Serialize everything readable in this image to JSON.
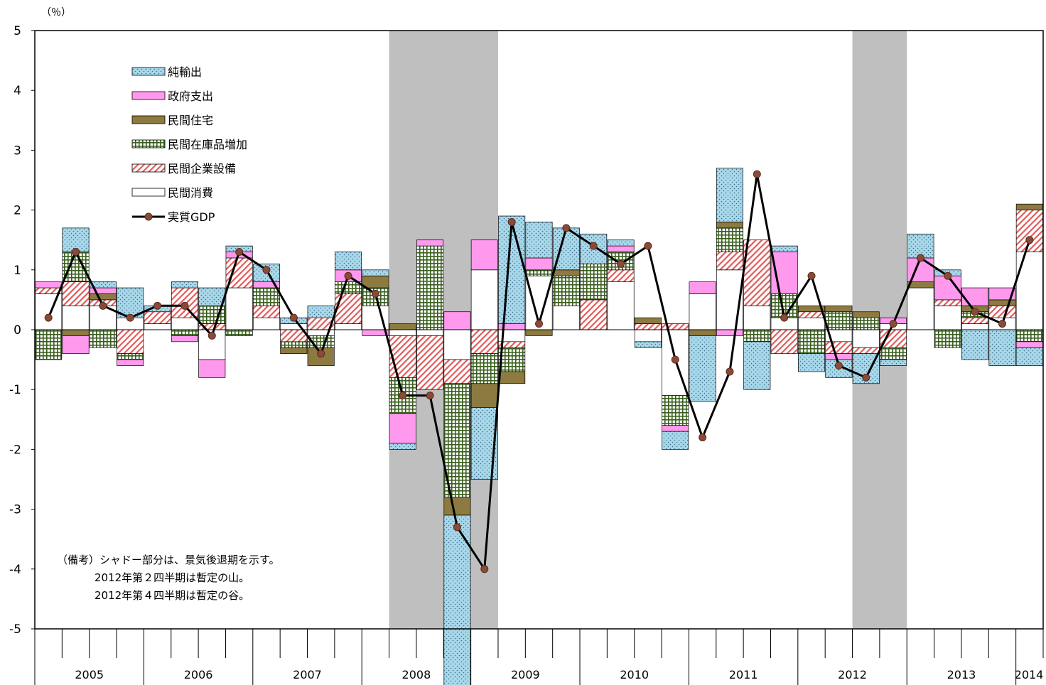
{
  "chart_data": {
    "type": "bar",
    "subtype": "stacked-bar-with-line",
    "unit_label": "（％）",
    "ylim": [
      -5,
      5
    ],
    "yticks": [
      5,
      4,
      3,
      2,
      1,
      0,
      -1,
      -2,
      -3,
      -4,
      -5
    ],
    "grid": false,
    "legend_position": "top-left",
    "years": [
      "2005",
      "2006",
      "2007",
      "2008",
      "2009",
      "2010",
      "2011",
      "2012",
      "2013",
      "2014"
    ],
    "recession_shading": [
      {
        "from_quarter": 13,
        "to_quarter": 16
      },
      {
        "from_quarter": 30,
        "to_quarter": 31
      }
    ],
    "series": [
      {
        "name": "民間消費",
        "pattern": "plain",
        "color": "#ffffff",
        "values": [
          0.6,
          0.4,
          0.4,
          0.2,
          0.1,
          0.2,
          -0.5,
          0.7,
          0.2,
          0.1,
          -0.1,
          0.1,
          0.4,
          -0.1,
          -0.1,
          -0.5,
          1.0,
          -0.2,
          0.9,
          0.4,
          0.0,
          0.8,
          -0.2,
          -1.1,
          0.6,
          1.0,
          0.4,
          0.2,
          0.2,
          -0.2,
          -0.3,
          0.1,
          0.7,
          0.4,
          0.1,
          0.2,
          1.3
        ]
      },
      {
        "name": "民間企業設備",
        "pattern": "diag",
        "color": "#e05c5c",
        "values": [
          0.1,
          0.4,
          0.1,
          -0.4,
          0.2,
          0.5,
          0.1,
          0.5,
          0.2,
          -0.2,
          0.2,
          0.5,
          0.0,
          -0.7,
          -0.9,
          -0.4,
          -0.4,
          -0.1,
          0.0,
          0.0,
          0.5,
          0.2,
          0.1,
          0.1,
          0.0,
          0.3,
          1.1,
          -0.4,
          0.1,
          -0.2,
          -0.1,
          -0.3,
          0.0,
          0.1,
          0.1,
          0.2,
          0.7
        ]
      },
      {
        "name": "民間在庫品増加",
        "pattern": "grid",
        "color": "#3a5f1e",
        "values": [
          -0.5,
          0.5,
          -0.3,
          -0.1,
          0.0,
          -0.1,
          0.3,
          -0.1,
          0.3,
          -0.1,
          -0.2,
          0.2,
          0.3,
          -0.6,
          1.4,
          -1.9,
          -0.5,
          -0.4,
          0.1,
          0.5,
          0.6,
          0.3,
          0.0,
          -0.5,
          0.0,
          0.4,
          -0.2,
          0.4,
          -0.4,
          0.3,
          0.2,
          -0.2,
          0.0,
          -0.3,
          0.1,
          0.0,
          -0.2
        ]
      },
      {
        "name": "民間住宅",
        "pattern": "solid",
        "color": "#8c7a40",
        "values": [
          0.0,
          -0.1,
          0.1,
          0.0,
          0.0,
          0.0,
          0.0,
          0.0,
          0.0,
          -0.1,
          -0.3,
          0.0,
          0.2,
          0.1,
          0.0,
          -0.3,
          -0.4,
          -0.2,
          -0.1,
          0.1,
          0.0,
          0.0,
          0.1,
          0.0,
          -0.1,
          0.1,
          0.0,
          0.0,
          0.1,
          0.1,
          0.1,
          0.0,
          0.1,
          0.0,
          0.1,
          0.1,
          0.1
        ]
      },
      {
        "name": "政府支出",
        "pattern": "solid",
        "color": "#ff99ee",
        "values": [
          0.1,
          -0.3,
          0.1,
          -0.1,
          0.0,
          -0.1,
          -0.3,
          0.1,
          0.1,
          0.0,
          0.0,
          0.2,
          -0.1,
          -0.5,
          0.1,
          0.3,
          0.5,
          0.1,
          0.2,
          0.0,
          0.0,
          0.1,
          0.0,
          -0.1,
          0.2,
          -0.1,
          0.0,
          0.7,
          0.0,
          -0.1,
          0.0,
          0.1,
          0.4,
          0.4,
          0.3,
          0.2,
          -0.1
        ]
      },
      {
        "name": "純輸出",
        "pattern": "dots",
        "color": "#a8d8ea",
        "values": [
          0.0,
          0.4,
          0.1,
          0.5,
          0.1,
          0.1,
          0.3,
          0.1,
          0.3,
          0.1,
          0.2,
          0.3,
          0.1,
          -0.1,
          0.0,
          -2.9,
          -1.2,
          1.8,
          0.6,
          0.7,
          0.5,
          0.1,
          -0.1,
          -0.3,
          -1.1,
          0.9,
          -0.8,
          0.1,
          -0.3,
          -0.3,
          -0.5,
          -0.1,
          0.4,
          0.1,
          -0.5,
          -0.6,
          -0.3
        ]
      },
      {
        "name": "実質GDP",
        "pattern": "line",
        "color": "#000000",
        "values": [
          0.2,
          1.3,
          0.4,
          0.2,
          0.4,
          0.4,
          -0.1,
          1.3,
          1.0,
          0.2,
          -0.4,
          0.9,
          0.6,
          -1.1,
          -1.1,
          -3.3,
          -4.0,
          1.8,
          0.1,
          1.7,
          1.4,
          1.1,
          1.4,
          -0.5,
          -1.8,
          -0.7,
          2.6,
          0.2,
          0.9,
          -0.6,
          -0.8,
          0.1,
          1.2,
          0.9,
          0.3,
          0.1,
          1.5
        ]
      }
    ]
  },
  "legend": {
    "items": [
      "純輸出",
      "政府支出",
      "民間住宅",
      "民間在庫品増加",
      "民間企業設備",
      "民間消費",
      "実質GDP"
    ]
  },
  "note": {
    "line1": "（備考）シャドー部分は、景気後退期を示す。",
    "line2": "2012年第２四半期は暫定の山。",
    "line3": "2012年第４四半期は暫定の谷。"
  }
}
